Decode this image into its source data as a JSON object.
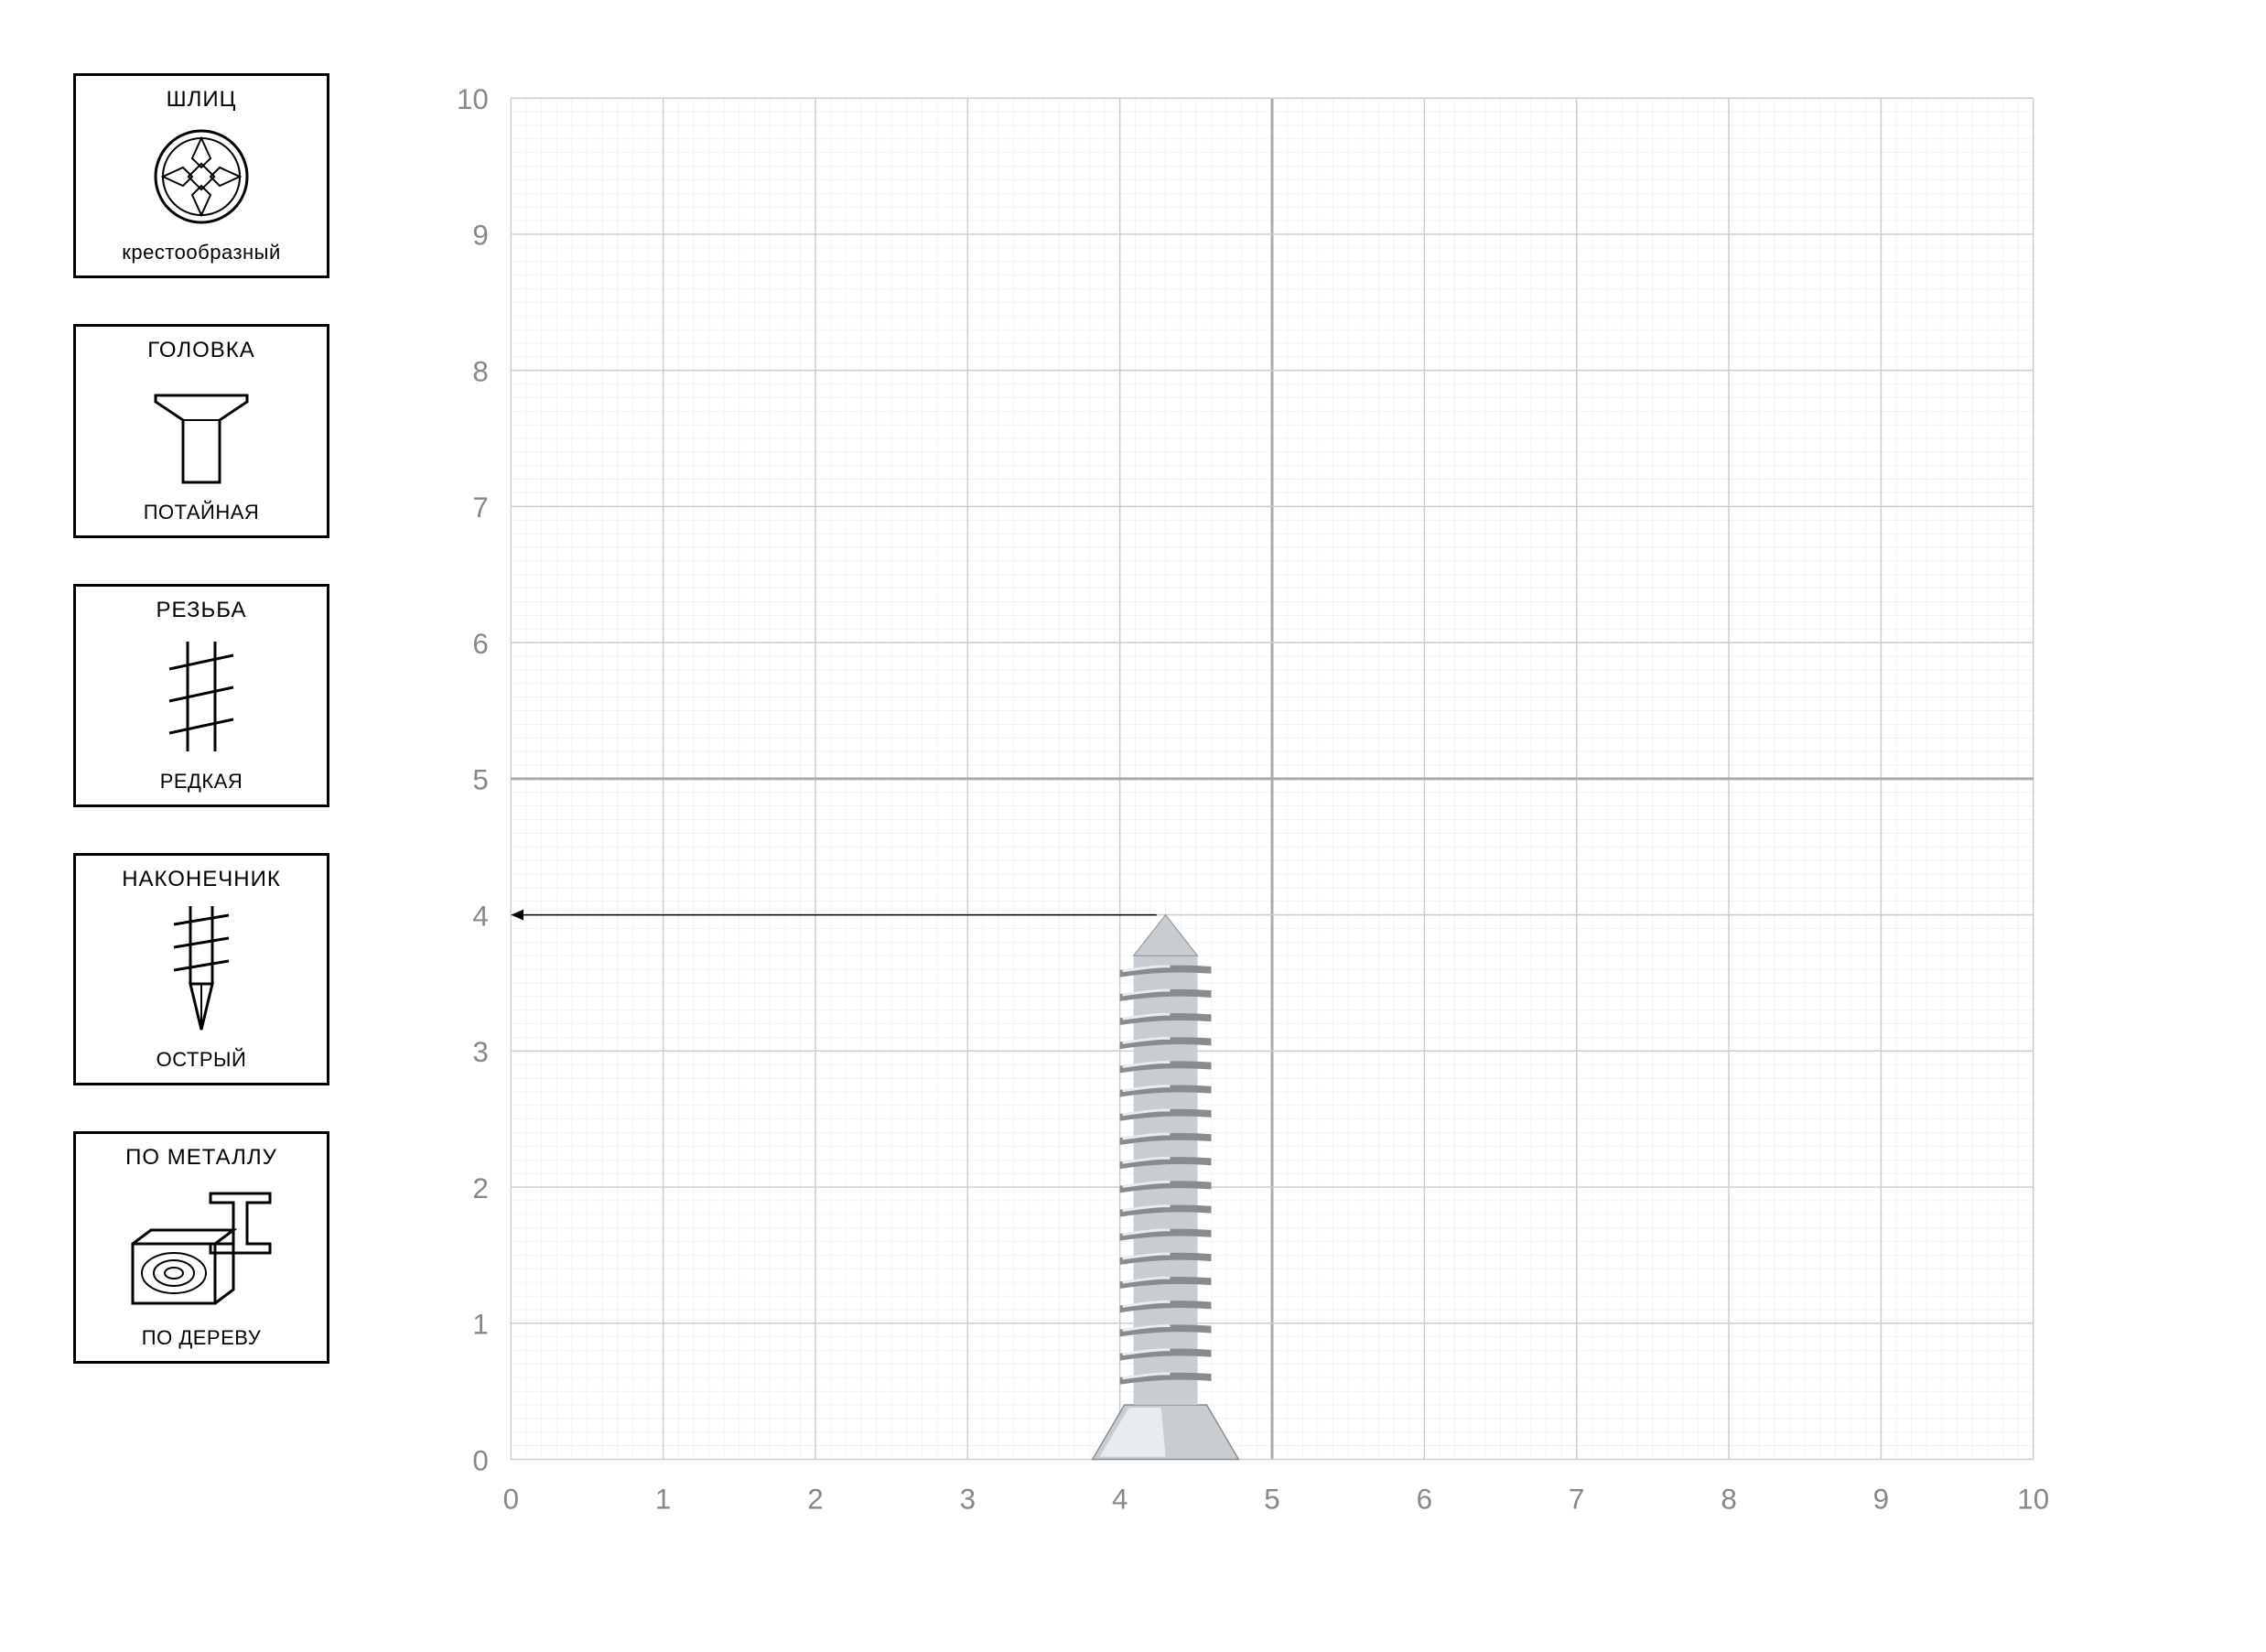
{
  "sidebar": {
    "cards": [
      {
        "title": "ШЛИЦ",
        "subtitle": "крестообразный",
        "icon": "phillips-head"
      },
      {
        "title": "ГОЛОВКА",
        "subtitle": "ПОТАЙНАЯ",
        "icon": "countersunk-head"
      },
      {
        "title": "РЕЗЬБА",
        "subtitle": "РЕДКАЯ",
        "icon": "coarse-thread"
      },
      {
        "title": "НАКОНЕЧНИК",
        "subtitle": "ОСТРЫЙ",
        "icon": "sharp-point"
      },
      {
        "title": "ПО МЕТАЛЛУ",
        "subtitle": "ПО ДЕРЕВУ",
        "icon": "metal-wood"
      }
    ]
  },
  "chart": {
    "type": "measurement-grid",
    "xlim": [
      0,
      10
    ],
    "ylim": [
      0,
      10
    ],
    "xtick_step": 1,
    "ytick_step": 1,
    "xticks": [
      0,
      1,
      2,
      3,
      4,
      5,
      6,
      7,
      8,
      9,
      10
    ],
    "yticks": [
      0,
      1,
      2,
      3,
      4,
      5,
      6,
      7,
      8,
      9,
      10
    ],
    "minor_per_major": 10,
    "background_color": "#ffffff",
    "major_grid_color": "#cccccc",
    "minor_grid_color": "#eeeeee",
    "emphasis_grid_color": "#aaaaaa",
    "emphasis_x": 5,
    "emphasis_y": 5,
    "label_color": "#888888",
    "label_fontsize": 32,
    "screw": {
      "x_position": 4.3,
      "height_units": 4.0,
      "width_units": 0.6,
      "body_color": "#c8cdd2",
      "highlight_color": "#e8ecef",
      "shadow_color": "#888c90"
    },
    "dimension_line": {
      "from_x": 0,
      "to_x": 4.3,
      "at_y": 4.0,
      "color": "#000000"
    }
  }
}
